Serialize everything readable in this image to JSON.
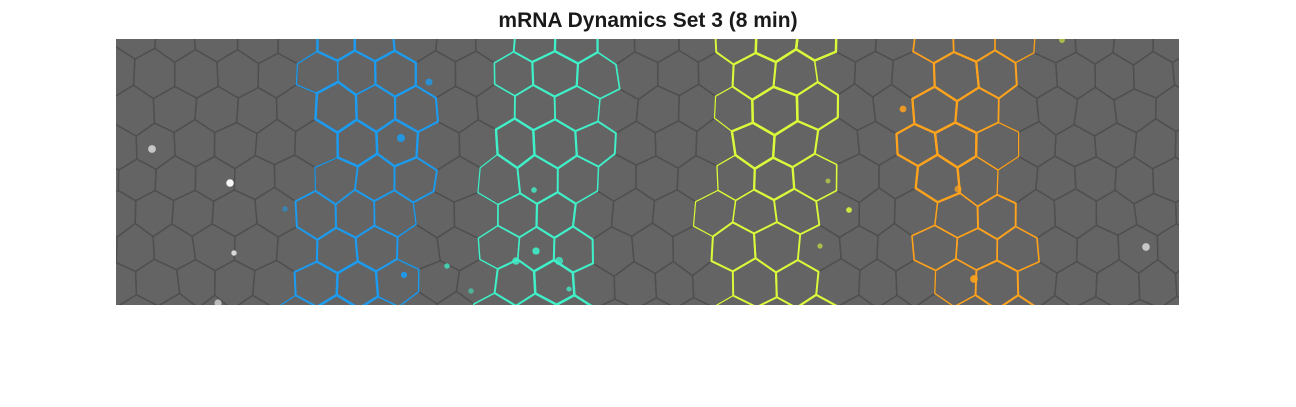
{
  "figure": {
    "title": "mRNA Dynamics Set 3 (8 min)"
  },
  "image": {
    "background_color": "#646464",
    "cell_edge_color": "#4f4f4f",
    "stripes": [
      {
        "color": "#1b9cf0"
      },
      {
        "color": "#3ff0c8"
      },
      {
        "color": "#d9fb3a"
      },
      {
        "color": "#ffa31c"
      }
    ],
    "spot_colors": [
      "#ffffff",
      "#1b9cf0",
      "#3ff0c8",
      "#d9fb3a",
      "#ffa31c",
      "#e8c870"
    ]
  }
}
